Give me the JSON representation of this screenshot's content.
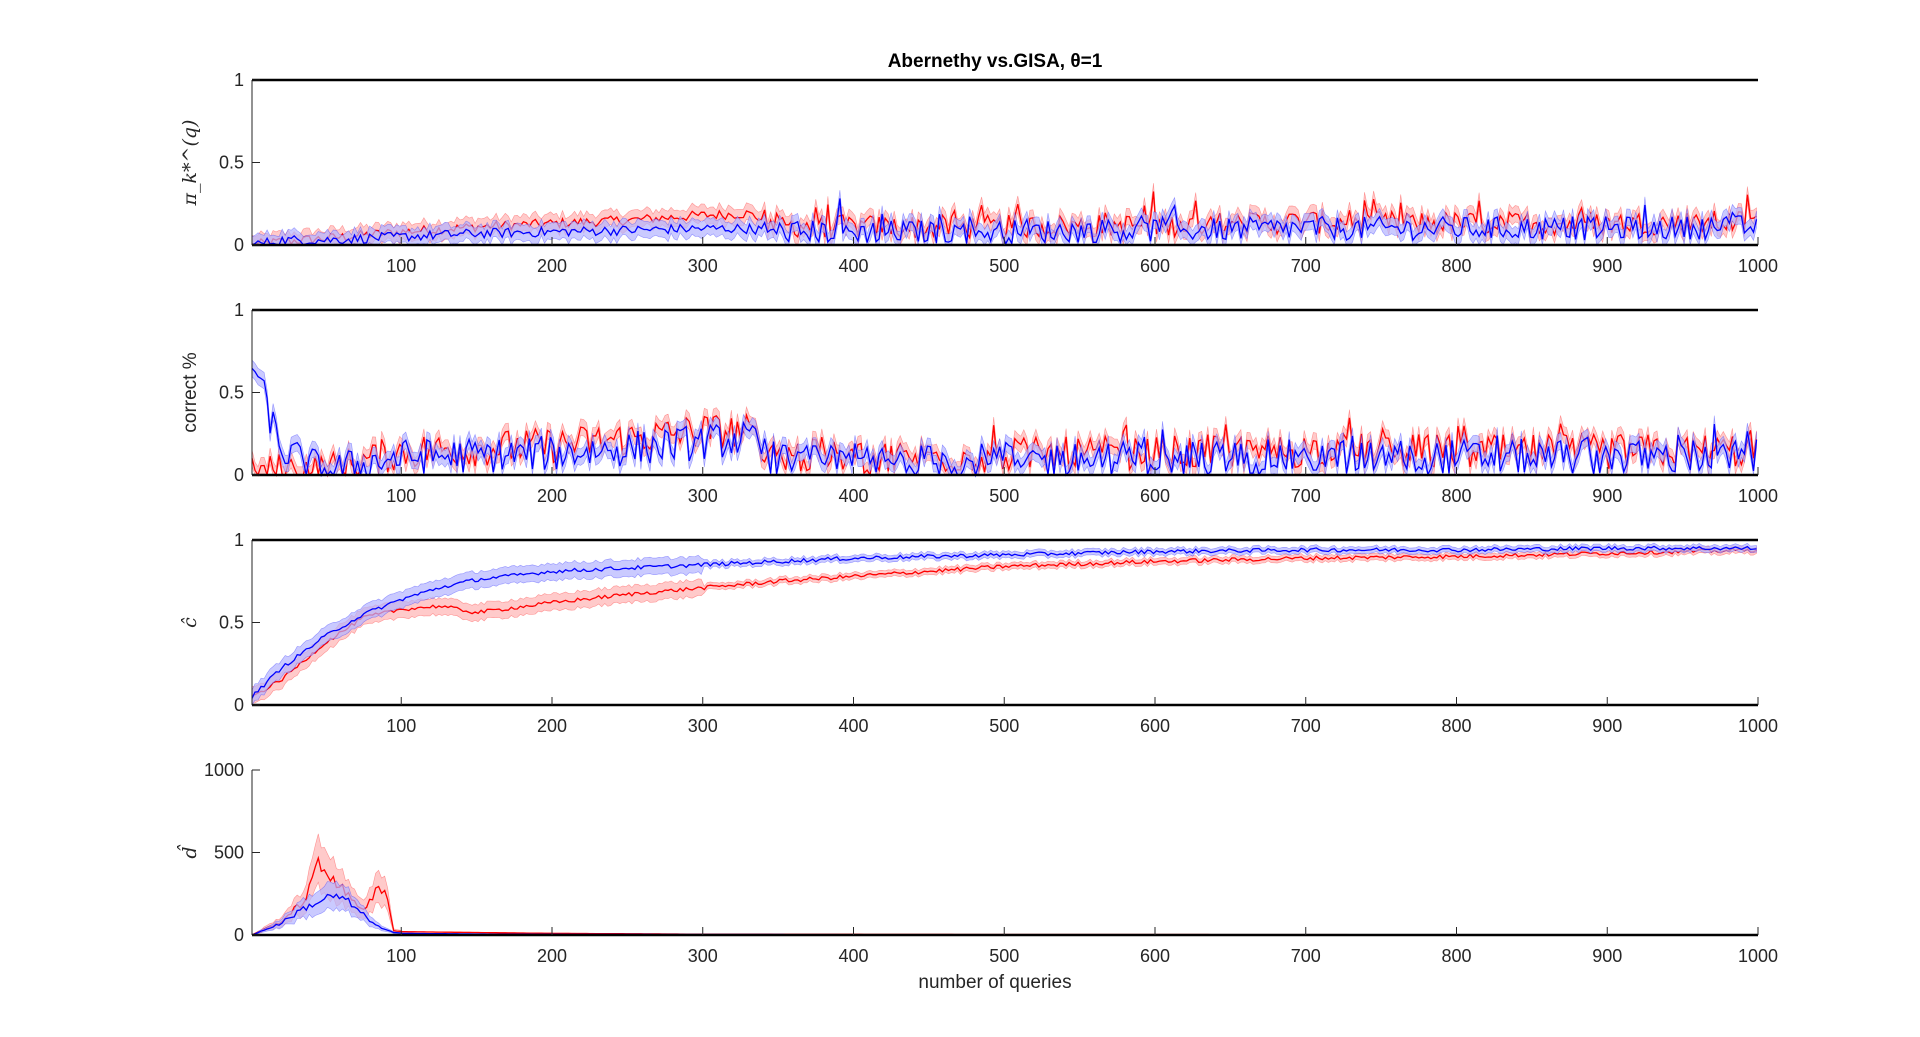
{
  "figure": {
    "title": "Abernethy vs.GISA, θ=1",
    "xlabel": "number of queries"
  },
  "colors": {
    "red": "#ff0000",
    "blue": "#0000ff",
    "red_band": "#ffb3b3",
    "blue_band": "#b3b3ff",
    "axis": "#262626"
  },
  "chart_data": [
    {
      "type": "line",
      "ylabel": "π_k*^(q)",
      "xlim": [
        1,
        1000
      ],
      "ylim": [
        0,
        1
      ],
      "xticks": [
        "100",
        "200",
        "300",
        "400",
        "500",
        "600",
        "700",
        "800",
        "900",
        "1000"
      ],
      "yticks": [
        "0",
        "0.5",
        "1"
      ],
      "grid": false,
      "x": [
        1,
        20,
        50,
        100,
        150,
        200,
        250,
        300,
        330,
        350,
        400,
        500,
        600,
        700,
        800,
        900,
        1000
      ],
      "series": [
        {
          "color": "red",
          "mean": [
            0,
            0.02,
            0.04,
            0.08,
            0.11,
            0.13,
            0.15,
            0.18,
            0.19,
            0.12,
            0.11,
            0.11,
            0.12,
            0.14,
            0.13,
            0.13,
            0.14
          ]
        },
        {
          "color": "blue",
          "mean": [
            0,
            0.03,
            0.03,
            0.05,
            0.07,
            0.08,
            0.09,
            0.1,
            0.1,
            0.08,
            0.08,
            0.08,
            0.09,
            0.1,
            0.1,
            0.1,
            0.11
          ]
        }
      ]
    },
    {
      "type": "line",
      "ylabel": "correct %",
      "xlim": [
        1,
        1000
      ],
      "ylim": [
        0,
        1
      ],
      "xticks": [
        "100",
        "200",
        "300",
        "400",
        "500",
        "600",
        "700",
        "800",
        "900",
        "1000"
      ],
      "yticks": [
        "0",
        "0.5",
        "1"
      ],
      "grid": false,
      "x": [
        1,
        20,
        50,
        100,
        150,
        200,
        250,
        300,
        330,
        350,
        400,
        500,
        600,
        700,
        800,
        900,
        1000
      ],
      "series": [
        {
          "color": "red",
          "mean": [
            0,
            0.03,
            0.03,
            0.14,
            0.16,
            0.18,
            0.22,
            0.27,
            0.26,
            0.12,
            0.1,
            0.12,
            0.13,
            0.15,
            0.14,
            0.14,
            0.15
          ]
        },
        {
          "color": "blue",
          "mean": [
            0.7,
            0.15,
            0.02,
            0.11,
            0.12,
            0.13,
            0.16,
            0.2,
            0.22,
            0.08,
            0.07,
            0.09,
            0.1,
            0.11,
            0.11,
            0.11,
            0.11
          ]
        }
      ]
    },
    {
      "type": "line",
      "ylabel": "ĉ",
      "xlim": [
        1,
        1000
      ],
      "ylim": [
        0,
        1
      ],
      "xticks": [
        "100",
        "200",
        "300",
        "400",
        "500",
        "600",
        "700",
        "800",
        "900",
        "1000"
      ],
      "yticks": [
        "0",
        "0.5",
        "1"
      ],
      "grid": false,
      "x": [
        1,
        20,
        50,
        75,
        100,
        125,
        150,
        200,
        250,
        300,
        350,
        400,
        500,
        600,
        700,
        800,
        900,
        1000
      ],
      "series": [
        {
          "color": "red",
          "mean": [
            0.05,
            0.15,
            0.38,
            0.53,
            0.58,
            0.6,
            0.56,
            0.62,
            0.67,
            0.71,
            0.75,
            0.78,
            0.84,
            0.87,
            0.89,
            0.9,
            0.92,
            0.94
          ]
        },
        {
          "color": "blue",
          "mean": [
            0.05,
            0.22,
            0.42,
            0.55,
            0.64,
            0.71,
            0.76,
            0.81,
            0.83,
            0.85,
            0.87,
            0.89,
            0.91,
            0.93,
            0.94,
            0.94,
            0.95,
            0.95
          ]
        }
      ]
    },
    {
      "type": "line",
      "ylabel": "d̂",
      "xlim": [
        1,
        1000
      ],
      "ylim": [
        0,
        1000
      ],
      "xticks": [
        "100",
        "200",
        "300",
        "400",
        "500",
        "600",
        "700",
        "800",
        "900",
        "1000"
      ],
      "yticks": [
        "0",
        "500",
        "1000"
      ],
      "grid": false,
      "x": [
        1,
        20,
        35,
        45,
        55,
        65,
        75,
        85,
        90,
        95,
        100,
        150,
        200,
        300,
        500,
        1000
      ],
      "series": [
        {
          "color": "red",
          "mean": [
            0,
            80,
            200,
            420,
            350,
            230,
            160,
            280,
            240,
            30,
            20,
            15,
            10,
            5,
            3,
            2
          ]
        },
        {
          "color": "blue",
          "mean": [
            0,
            70,
            160,
            200,
            240,
            200,
            120,
            50,
            30,
            15,
            10,
            6,
            4,
            3,
            2,
            1
          ]
        }
      ]
    }
  ]
}
